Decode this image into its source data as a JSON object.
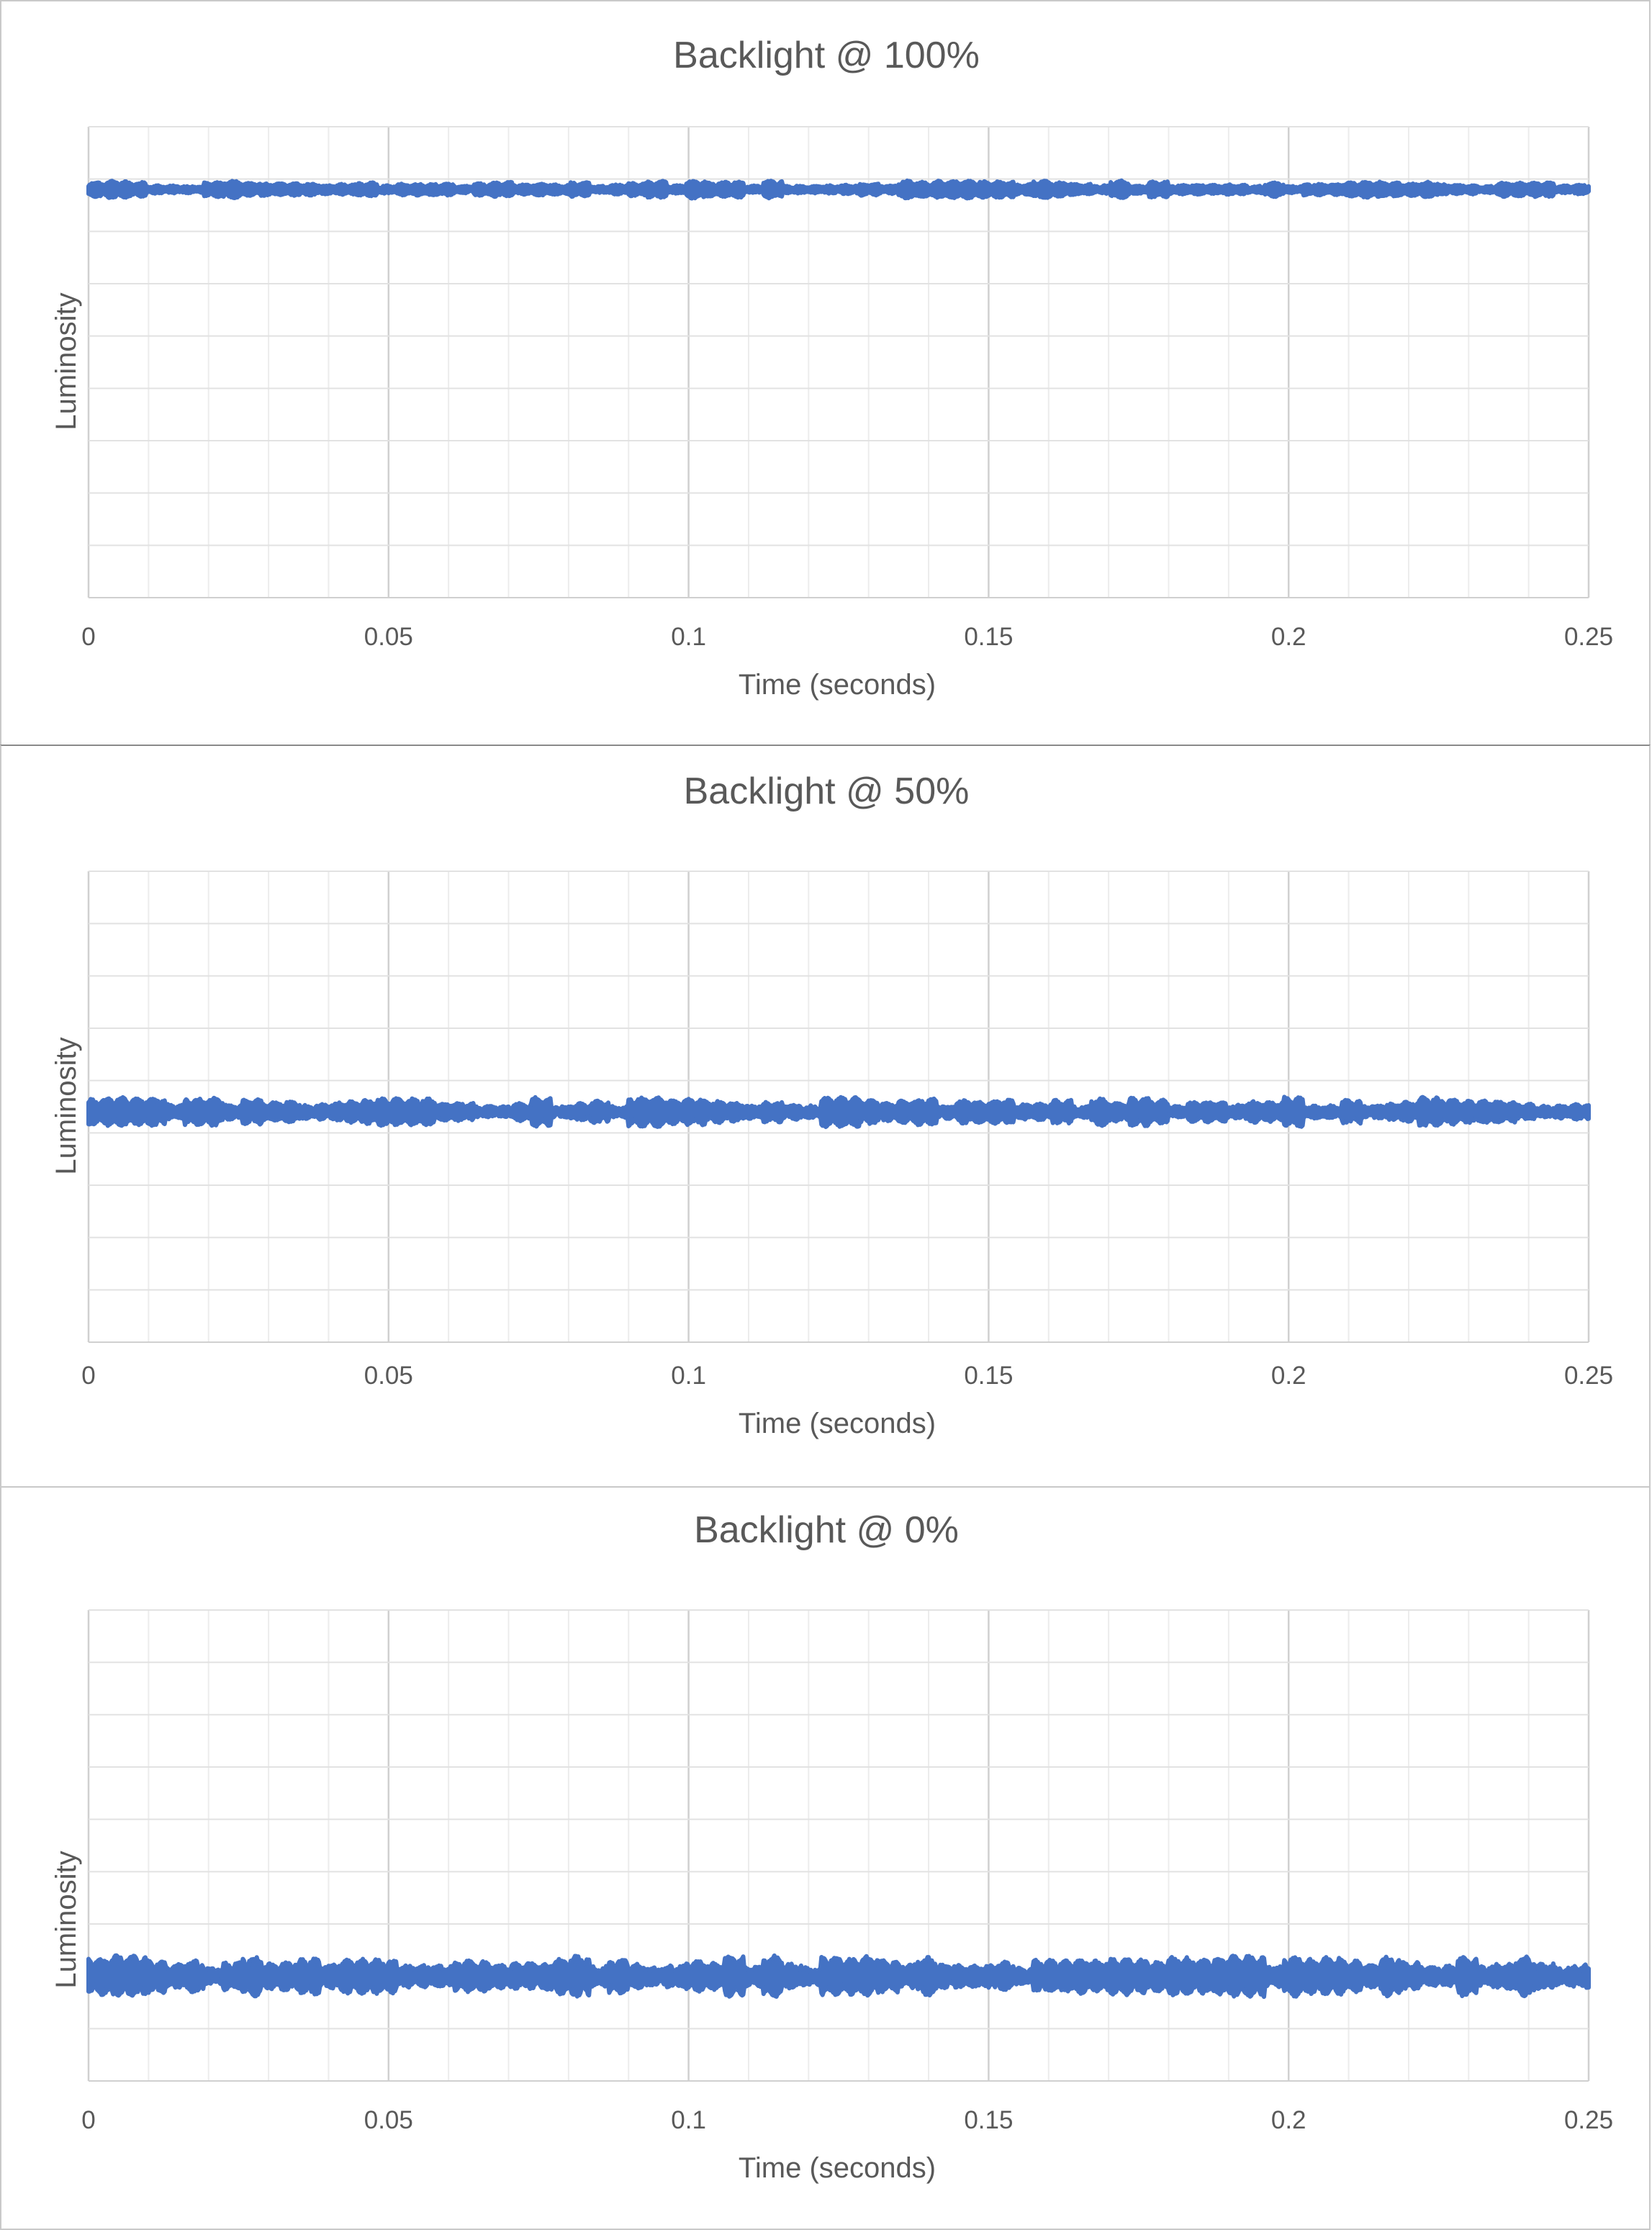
{
  "chart_data": [
    {
      "type": "line",
      "title": "Backlight @ 100%",
      "xlabel": "Time (seconds)",
      "ylabel": "Luminosity",
      "xlim": [
        0,
        0.25
      ],
      "ylim": [
        0,
        9
      ],
      "x_ticks": [
        "0",
        "0.05",
        "0.1",
        "0.15",
        "0.2",
        "0.25"
      ],
      "grid": true,
      "series_color": "#4472C4",
      "series": [
        {
          "baseline": 7.8,
          "ripple_amplitude": 0.12,
          "x_range": [
            0,
            0.25
          ]
        }
      ]
    },
    {
      "type": "line",
      "title": "Backlight @ 50%",
      "xlabel": "Time (seconds)",
      "ylabel": "Luminosity",
      "xlim": [
        0,
        0.25
      ],
      "ylim": [
        0,
        9
      ],
      "x_ticks": [
        "0",
        "0.05",
        "0.1",
        "0.15",
        "0.2",
        "0.25"
      ],
      "grid": true,
      "series_color": "#4472C4",
      "series": [
        {
          "baseline": 4.4,
          "ripple_amplitude": 0.2,
          "x_range": [
            0,
            0.25
          ]
        }
      ]
    },
    {
      "type": "line",
      "title": "Backlight @ 0%",
      "xlabel": "Time (seconds)",
      "ylabel": "Luminosity",
      "xlim": [
        0,
        0.25
      ],
      "ylim": [
        0,
        9
      ],
      "x_ticks": [
        "0",
        "0.05",
        "0.1",
        "0.15",
        "0.2",
        "0.25"
      ],
      "grid": true,
      "series_color": "#4472C4",
      "series": [
        {
          "baseline": 2.0,
          "ripple_amplitude": 0.28,
          "x_range": [
            0,
            0.25
          ]
        }
      ]
    }
  ]
}
